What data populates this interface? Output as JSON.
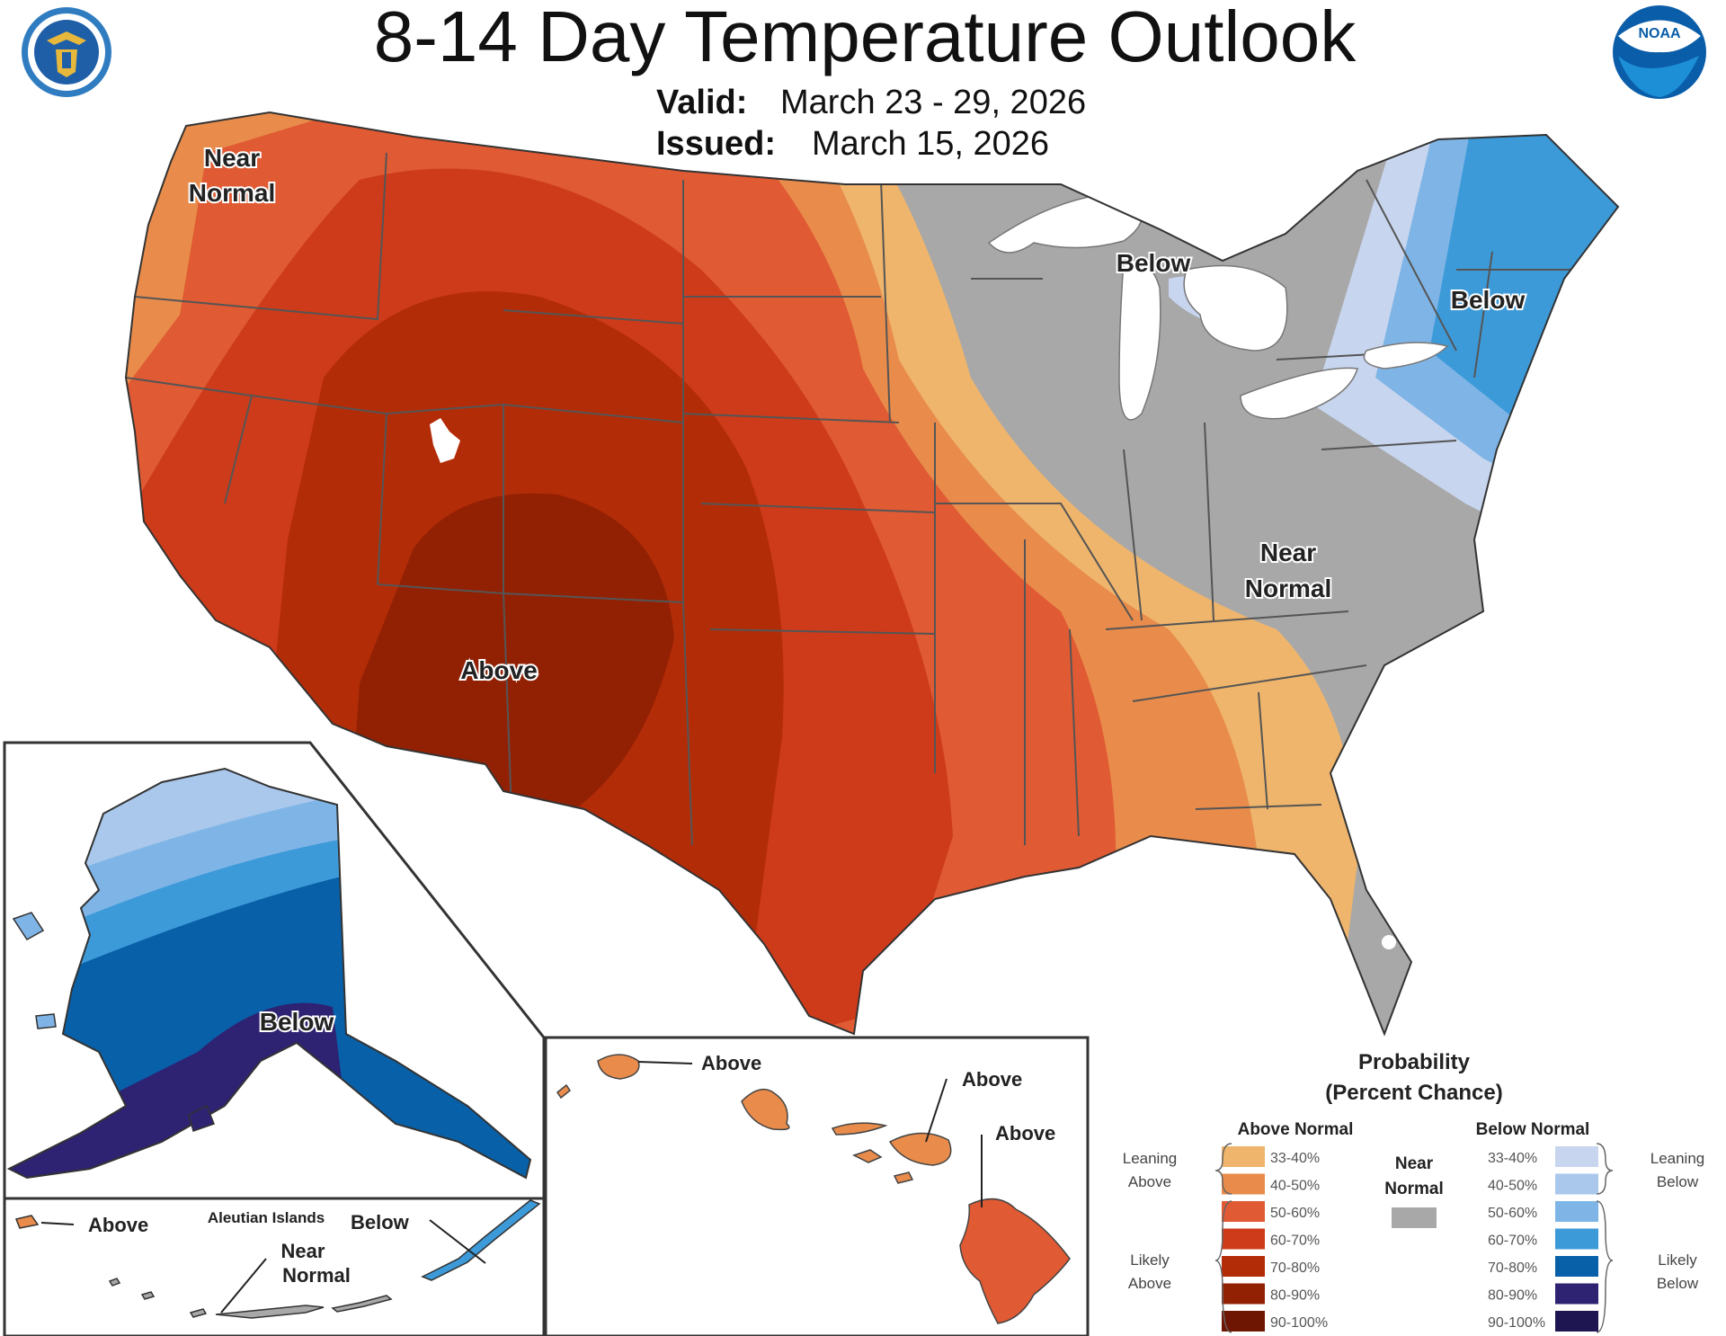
{
  "header": {
    "title": "8-14 Day Temperature Outlook",
    "valid_label": "Valid:",
    "valid_dates": "March 23 - 29, 2026",
    "issued_label": "Issued:",
    "issued_date": "March 15, 2026",
    "noaa_logo_text": "NOAA"
  },
  "colors": {
    "above": [
      "#efb56c",
      "#e98c4b",
      "#e05a33",
      "#cd3b1a",
      "#b32c08",
      "#922103",
      "#6e1602"
    ],
    "below": [
      "#c7d5ee",
      "#a9c8ec",
      "#7fb5e6",
      "#3d9ad9",
      "#0860a8",
      "#2e2272",
      "#1d1650"
    ],
    "near_normal": "#a8a8a8",
    "state_border": "#555555",
    "lakes": "#ffffff"
  },
  "conus": {
    "region_labels": {
      "near_normal_nw_1": "Near",
      "near_normal_nw_2": "Normal",
      "below_great_lakes": "Below",
      "below_northeast": "Below",
      "near_normal_east_1": "Near",
      "near_normal_east_2": "Normal",
      "above_sw": "Above"
    }
  },
  "alaska": {
    "region_label": "Below",
    "aleutians": {
      "title": "Aleutian Islands",
      "above": "Above",
      "below": "Below",
      "near_normal_1": "Near",
      "near_normal_2": "Normal"
    }
  },
  "hawaii": {
    "labels": [
      "Above",
      "Above",
      "Above"
    ]
  },
  "legend": {
    "title_1": "Probability",
    "title_2": "(Percent Chance)",
    "above_header": "Above Normal",
    "below_header": "Below Normal",
    "near_normal_1": "Near",
    "near_normal_2": "Normal",
    "leaning_above_1": "Leaning",
    "leaning_above_2": "Above",
    "likely_above_1": "Likely",
    "likely_above_2": "Above",
    "leaning_below_1": "Leaning",
    "leaning_below_2": "Below",
    "likely_below_1": "Likely",
    "likely_below_2": "Below",
    "ranges": [
      "33-40%",
      "40-50%",
      "50-60%",
      "60-70%",
      "70-80%",
      "80-90%",
      "90-100%"
    ]
  }
}
